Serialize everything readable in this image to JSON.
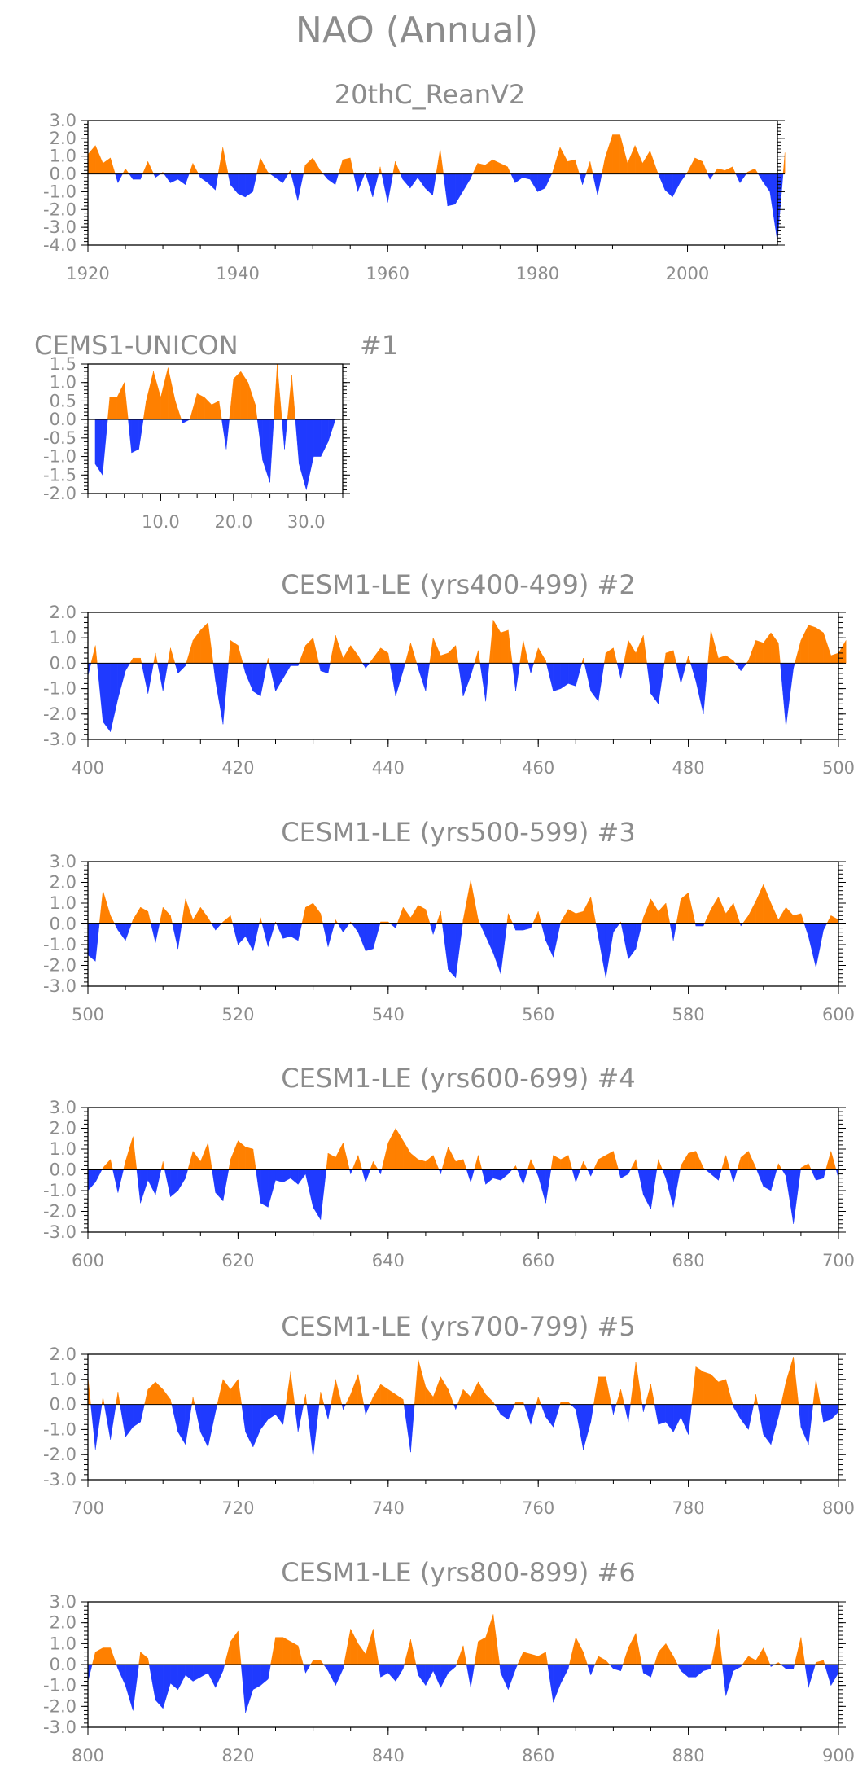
{
  "figure_title": "NAO (Annual)",
  "colors": {
    "positive": "#ff8000",
    "negative": "#1f3aff",
    "text": "#8c8c8c",
    "axis": "#000000"
  },
  "chart_data": [
    {
      "type": "area",
      "title": "20thC_ReanV2",
      "xlabel": "",
      "ylabel": "",
      "xlim": [
        1920,
        2012
      ],
      "ylim": [
        -4.0,
        3.0
      ],
      "xticks": [
        "1920",
        "1940",
        "1960",
        "1980",
        "2000"
      ],
      "yticks": [
        "3.0",
        "2.0",
        "1.0",
        "0.0",
        "-1.0",
        "-2.0",
        "-3.0",
        "-4.0"
      ],
      "x_start": 1920,
      "values": [
        1.1,
        1.6,
        0.6,
        0.9,
        -0.5,
        0.3,
        -0.3,
        -0.3,
        0.7,
        -0.2,
        0.1,
        -0.5,
        -0.3,
        -0.6,
        0.6,
        -0.2,
        -0.5,
        -0.9,
        1.5,
        -0.6,
        -1.1,
        -1.3,
        -1.0,
        0.9,
        0.1,
        -0.2,
        -0.5,
        0.2,
        -1.5,
        0.5,
        0.9,
        0.2,
        -0.3,
        -0.6,
        0.8,
        0.9,
        -1.0,
        0.1,
        -1.3,
        0.4,
        -1.6,
        0.7,
        -0.3,
        -0.8,
        -0.2,
        -0.8,
        -1.2,
        1.4,
        -1.8,
        -1.7,
        -1.0,
        -0.3,
        0.6,
        0.5,
        0.8,
        0.6,
        0.4,
        -0.5,
        -0.2,
        -0.3,
        -1.0,
        -0.8,
        0.1,
        1.5,
        0.7,
        0.8,
        -0.6,
        0.7,
        -1.2,
        0.9,
        2.2,
        2.2,
        0.6,
        1.6,
        0.6,
        1.3,
        0.1,
        -0.9,
        -1.3,
        -0.5,
        0.1,
        0.9,
        0.7,
        -0.3,
        0.3,
        0.2,
        0.4,
        -0.5,
        0.1,
        0.3,
        -0.4,
        -1.0,
        -3.8,
        1.2
      ]
    },
    {
      "type": "area",
      "title": "CEMS1-UNICON",
      "title_right": "#1",
      "xlabel": "",
      "ylabel": "",
      "xlim": [
        0,
        35
      ],
      "ylim": [
        -2.0,
        1.5
      ],
      "xticks": [
        "10.0",
        "20.0",
        "30.0"
      ],
      "yticks": [
        "1.5",
        "1.0",
        "0.5",
        "0.0",
        "-0.5",
        "-1.0",
        "-1.5",
        "-2.0"
      ],
      "x_start": 1,
      "values": [
        -1.2,
        -1.5,
        0.6,
        0.6,
        1.0,
        -0.9,
        -0.8,
        0.5,
        1.3,
        0.6,
        1.4,
        0.5,
        -0.1,
        0.0,
        0.7,
        0.6,
        0.4,
        0.5,
        -0.8,
        1.1,
        1.3,
        1.0,
        0.4,
        -1.1,
        -1.7,
        1.5,
        -0.8,
        1.2,
        -1.2,
        -1.9,
        -1.0,
        -1.0,
        -0.6,
        0.0
      ]
    },
    {
      "type": "area",
      "title": "CESM1-LE (yrs400-499) #2",
      "xlabel": "",
      "ylabel": "",
      "xlim": [
        400,
        500
      ],
      "ylim": [
        -3.0,
        2.0
      ],
      "xticks": [
        "400",
        "420",
        "440",
        "460",
        "480",
        "500"
      ],
      "yticks": [
        "2.0",
        "1.0",
        "0.0",
        "-1.0",
        "-2.0",
        "-3.0"
      ],
      "x_start": 400,
      "values": [
        -0.5,
        0.7,
        -2.3,
        -2.7,
        -1.4,
        -0.3,
        0.2,
        0.2,
        -1.2,
        0.4,
        -1.1,
        0.6,
        -0.4,
        -0.1,
        0.9,
        1.3,
        1.6,
        -0.7,
        -2.4,
        0.9,
        0.7,
        -0.4,
        -1.1,
        -1.3,
        0.2,
        -1.1,
        -0.6,
        -0.1,
        -0.1,
        0.7,
        1.0,
        -0.3,
        -0.4,
        1.1,
        0.2,
        0.7,
        0.3,
        -0.2,
        0.2,
        0.6,
        0.4,
        -1.3,
        -0.3,
        0.8,
        -0.2,
        -1.1,
        1.0,
        0.3,
        0.4,
        0.7,
        -1.3,
        -0.5,
        0.5,
        -1.5,
        1.7,
        1.2,
        1.3,
        -1.1,
        0.9,
        -0.4,
        0.6,
        0.1,
        -1.1,
        -1.0,
        -0.8,
        -0.9,
        0.2,
        -1.1,
        -1.5,
        0.4,
        0.6,
        -0.6,
        0.9,
        0.4,
        1.1,
        -1.2,
        -1.6,
        0.4,
        0.5,
        -0.8,
        0.3,
        -0.7,
        -2.0,
        1.3,
        0.2,
        0.3,
        0.1,
        -0.3,
        0.1,
        0.9,
        0.8,
        1.2,
        0.8,
        -2.5,
        -0.2,
        0.9,
        1.5,
        1.4,
        1.2,
        0.3,
        0.4,
        0.9
      ]
    },
    {
      "type": "area",
      "title": "CESM1-LE (yrs500-599) #3",
      "xlabel": "",
      "ylabel": "",
      "xlim": [
        500,
        600
      ],
      "ylim": [
        -3.0,
        3.0
      ],
      "xticks": [
        "500",
        "520",
        "540",
        "560",
        "580",
        "600"
      ],
      "yticks": [
        "3.0",
        "2.0",
        "1.0",
        "0.0",
        "-1.0",
        "-2.0",
        "-3.0"
      ],
      "x_start": 500,
      "values": [
        -1.5,
        -1.8,
        1.6,
        0.4,
        -0.3,
        -0.8,
        0.2,
        0.8,
        0.6,
        -0.9,
        0.8,
        0.4,
        -1.2,
        1.2,
        0.2,
        0.8,
        0.3,
        -0.3,
        0.1,
        0.4,
        -1.0,
        -0.6,
        -1.3,
        0.3,
        -1.1,
        0.1,
        -0.7,
        -0.6,
        -0.8,
        0.8,
        1.0,
        0.5,
        -1.1,
        0.2,
        -0.4,
        0.1,
        -0.4,
        -1.3,
        -1.2,
        0.1,
        0.1,
        -0.2,
        0.8,
        0.3,
        0.9,
        0.7,
        -0.5,
        0.6,
        -2.2,
        -2.6,
        0.2,
        2.1,
        0.2,
        -0.6,
        -1.4,
        -2.4,
        0.5,
        -0.3,
        -0.3,
        -0.2,
        0.6,
        -0.8,
        -1.6,
        0.1,
        0.7,
        0.5,
        0.6,
        1.3,
        -0.6,
        -2.6,
        -0.4,
        0.1,
        -1.7,
        -1.2,
        0.3,
        1.2,
        0.6,
        1.0,
        -0.8,
        1.2,
        1.5,
        -0.1,
        -0.1,
        0.7,
        1.3,
        0.5,
        1.0,
        -0.1,
        0.4,
        1.1,
        1.9,
        1.0,
        0.2,
        0.8,
        0.4,
        0.5,
        -0.6,
        -2.1,
        -0.3,
        0.4,
        0.2
      ]
    },
    {
      "type": "area",
      "title": "CESM1-LE (yrs600-699) #4",
      "xlabel": "",
      "ylabel": "",
      "xlim": [
        600,
        700
      ],
      "ylim": [
        -3.0,
        3.0
      ],
      "xticks": [
        "600",
        "620",
        "640",
        "660",
        "680",
        "700"
      ],
      "yticks": [
        "3.0",
        "2.0",
        "1.0",
        "0.0",
        "-1.0",
        "-2.0",
        "-3.0"
      ],
      "x_start": 600,
      "values": [
        -1.0,
        -0.6,
        0.1,
        0.5,
        -1.1,
        0.4,
        1.6,
        -1.6,
        -0.5,
        -1.2,
        0.4,
        -1.3,
        -1.0,
        -0.4,
        0.9,
        0.4,
        1.3,
        -1.1,
        -1.5,
        0.5,
        1.4,
        1.1,
        1.0,
        -1.6,
        -1.8,
        -0.5,
        -0.6,
        -0.4,
        -0.7,
        -0.2,
        -1.8,
        -2.4,
        0.8,
        0.6,
        1.3,
        -0.2,
        0.7,
        -0.6,
        0.4,
        -0.2,
        1.3,
        2.0,
        1.4,
        0.8,
        0.5,
        0.4,
        0.7,
        -0.2,
        1.1,
        0.4,
        0.5,
        -0.6,
        0.7,
        -0.7,
        -0.4,
        -0.5,
        -0.2,
        0.2,
        -0.7,
        0.5,
        -0.3,
        -1.6,
        0.7,
        0.5,
        0.7,
        -0.6,
        0.4,
        -0.3,
        0.5,
        0.7,
        0.9,
        -0.4,
        -0.2,
        0.5,
        -1.2,
        -1.9,
        0.5,
        -0.4,
        -1.8,
        0.2,
        0.8,
        0.9,
        0.1,
        -0.2,
        -0.5,
        0.7,
        -0.6,
        0.6,
        0.9,
        0.1,
        -0.8,
        -1.0,
        0.3,
        -0.3,
        -2.6,
        0.1,
        0.3,
        -0.5,
        -0.4,
        0.9,
        -0.4
      ]
    },
    {
      "type": "area",
      "title": "CESM1-LE (yrs700-799) #5",
      "xlabel": "",
      "ylabel": "",
      "xlim": [
        700,
        800
      ],
      "ylim": [
        -3.0,
        2.0
      ],
      "xticks": [
        "700",
        "720",
        "740",
        "760",
        "780",
        "800"
      ],
      "yticks": [
        "2.0",
        "1.0",
        "0.0",
        "-1.0",
        "-2.0",
        "-3.0"
      ],
      "x_start": 700,
      "values": [
        1.1,
        -1.8,
        0.3,
        -1.4,
        0.5,
        -1.3,
        -0.9,
        -0.7,
        0.6,
        0.9,
        0.6,
        0.2,
        -1.1,
        -1.6,
        0.3,
        -1.1,
        -1.7,
        -0.3,
        1.0,
        0.6,
        1.0,
        -1.1,
        -1.7,
        -1.0,
        -0.6,
        -0.4,
        -0.8,
        1.3,
        -1.1,
        0.4,
        -2.1,
        0.5,
        -0.6,
        1.0,
        -0.2,
        0.4,
        1.2,
        -0.4,
        0.3,
        0.8,
        0.6,
        0.4,
        0.2,
        -1.9,
        1.8,
        0.7,
        0.3,
        1.1,
        0.6,
        -0.2,
        0.6,
        0.3,
        0.9,
        0.4,
        0.1,
        -0.4,
        -0.6,
        0.1,
        0.1,
        -0.8,
        0.3,
        -0.5,
        -0.9,
        0.1,
        0.1,
        -0.2,
        -1.8,
        -0.7,
        1.1,
        1.1,
        -0.4,
        0.6,
        -0.7,
        1.7,
        -0.3,
        0.8,
        -0.8,
        -0.7,
        -1.1,
        -0.5,
        -1.2,
        1.5,
        1.3,
        1.2,
        0.9,
        1.0,
        -0.1,
        -0.6,
        -1.0,
        0.4,
        -1.2,
        -1.6,
        -0.5,
        0.9,
        1.9,
        -0.9,
        -1.6,
        1.0,
        -0.7,
        -0.6,
        -0.3
      ]
    },
    {
      "type": "area",
      "title": "CESM1-LE (yrs800-899) #6",
      "xlabel": "",
      "ylabel": "",
      "xlim": [
        800,
        900
      ],
      "ylim": [
        -3.0,
        3.0
      ],
      "xticks": [
        "800",
        "820",
        "840",
        "860",
        "880",
        "900"
      ],
      "yticks": [
        "3.0",
        "2.0",
        "1.0",
        "0.0",
        "-1.0",
        "-2.0",
        "-3.0"
      ],
      "x_start": 800,
      "values": [
        -0.8,
        0.6,
        0.8,
        0.8,
        -0.2,
        -1.0,
        -2.2,
        0.6,
        0.3,
        -1.7,
        -2.1,
        -0.9,
        -1.2,
        -0.5,
        -0.8,
        -0.6,
        -0.4,
        -1.1,
        -0.3,
        1.1,
        1.6,
        -2.3,
        -1.2,
        -1.0,
        -0.7,
        1.3,
        1.3,
        1.1,
        0.9,
        -0.4,
        0.2,
        0.2,
        -0.3,
        -1.0,
        -0.2,
        1.7,
        1.0,
        0.5,
        1.7,
        -0.6,
        -0.4,
        -0.8,
        -0.2,
        1.2,
        -0.5,
        -1.0,
        -0.3,
        -1.1,
        -0.4,
        -0.1,
        0.9,
        -1.1,
        1.1,
        1.3,
        2.4,
        -0.4,
        -1.2,
        -0.2,
        0.6,
        0.5,
        0.4,
        0.6,
        -1.8,
        -0.9,
        -0.2,
        1.3,
        0.6,
        -0.5,
        0.4,
        0.2,
        -0.2,
        -0.3,
        0.8,
        1.5,
        -0.4,
        -0.6,
        0.6,
        1.0,
        0.4,
        -0.3,
        -0.6,
        -0.6,
        -0.3,
        -0.2,
        1.7,
        -1.5,
        -0.3,
        -0.1,
        0.4,
        0.2,
        0.8,
        -0.1,
        0.1,
        -0.2,
        -0.2,
        1.3,
        -1.1,
        0.1,
        0.2,
        -1.0,
        -0.4
      ]
    }
  ]
}
